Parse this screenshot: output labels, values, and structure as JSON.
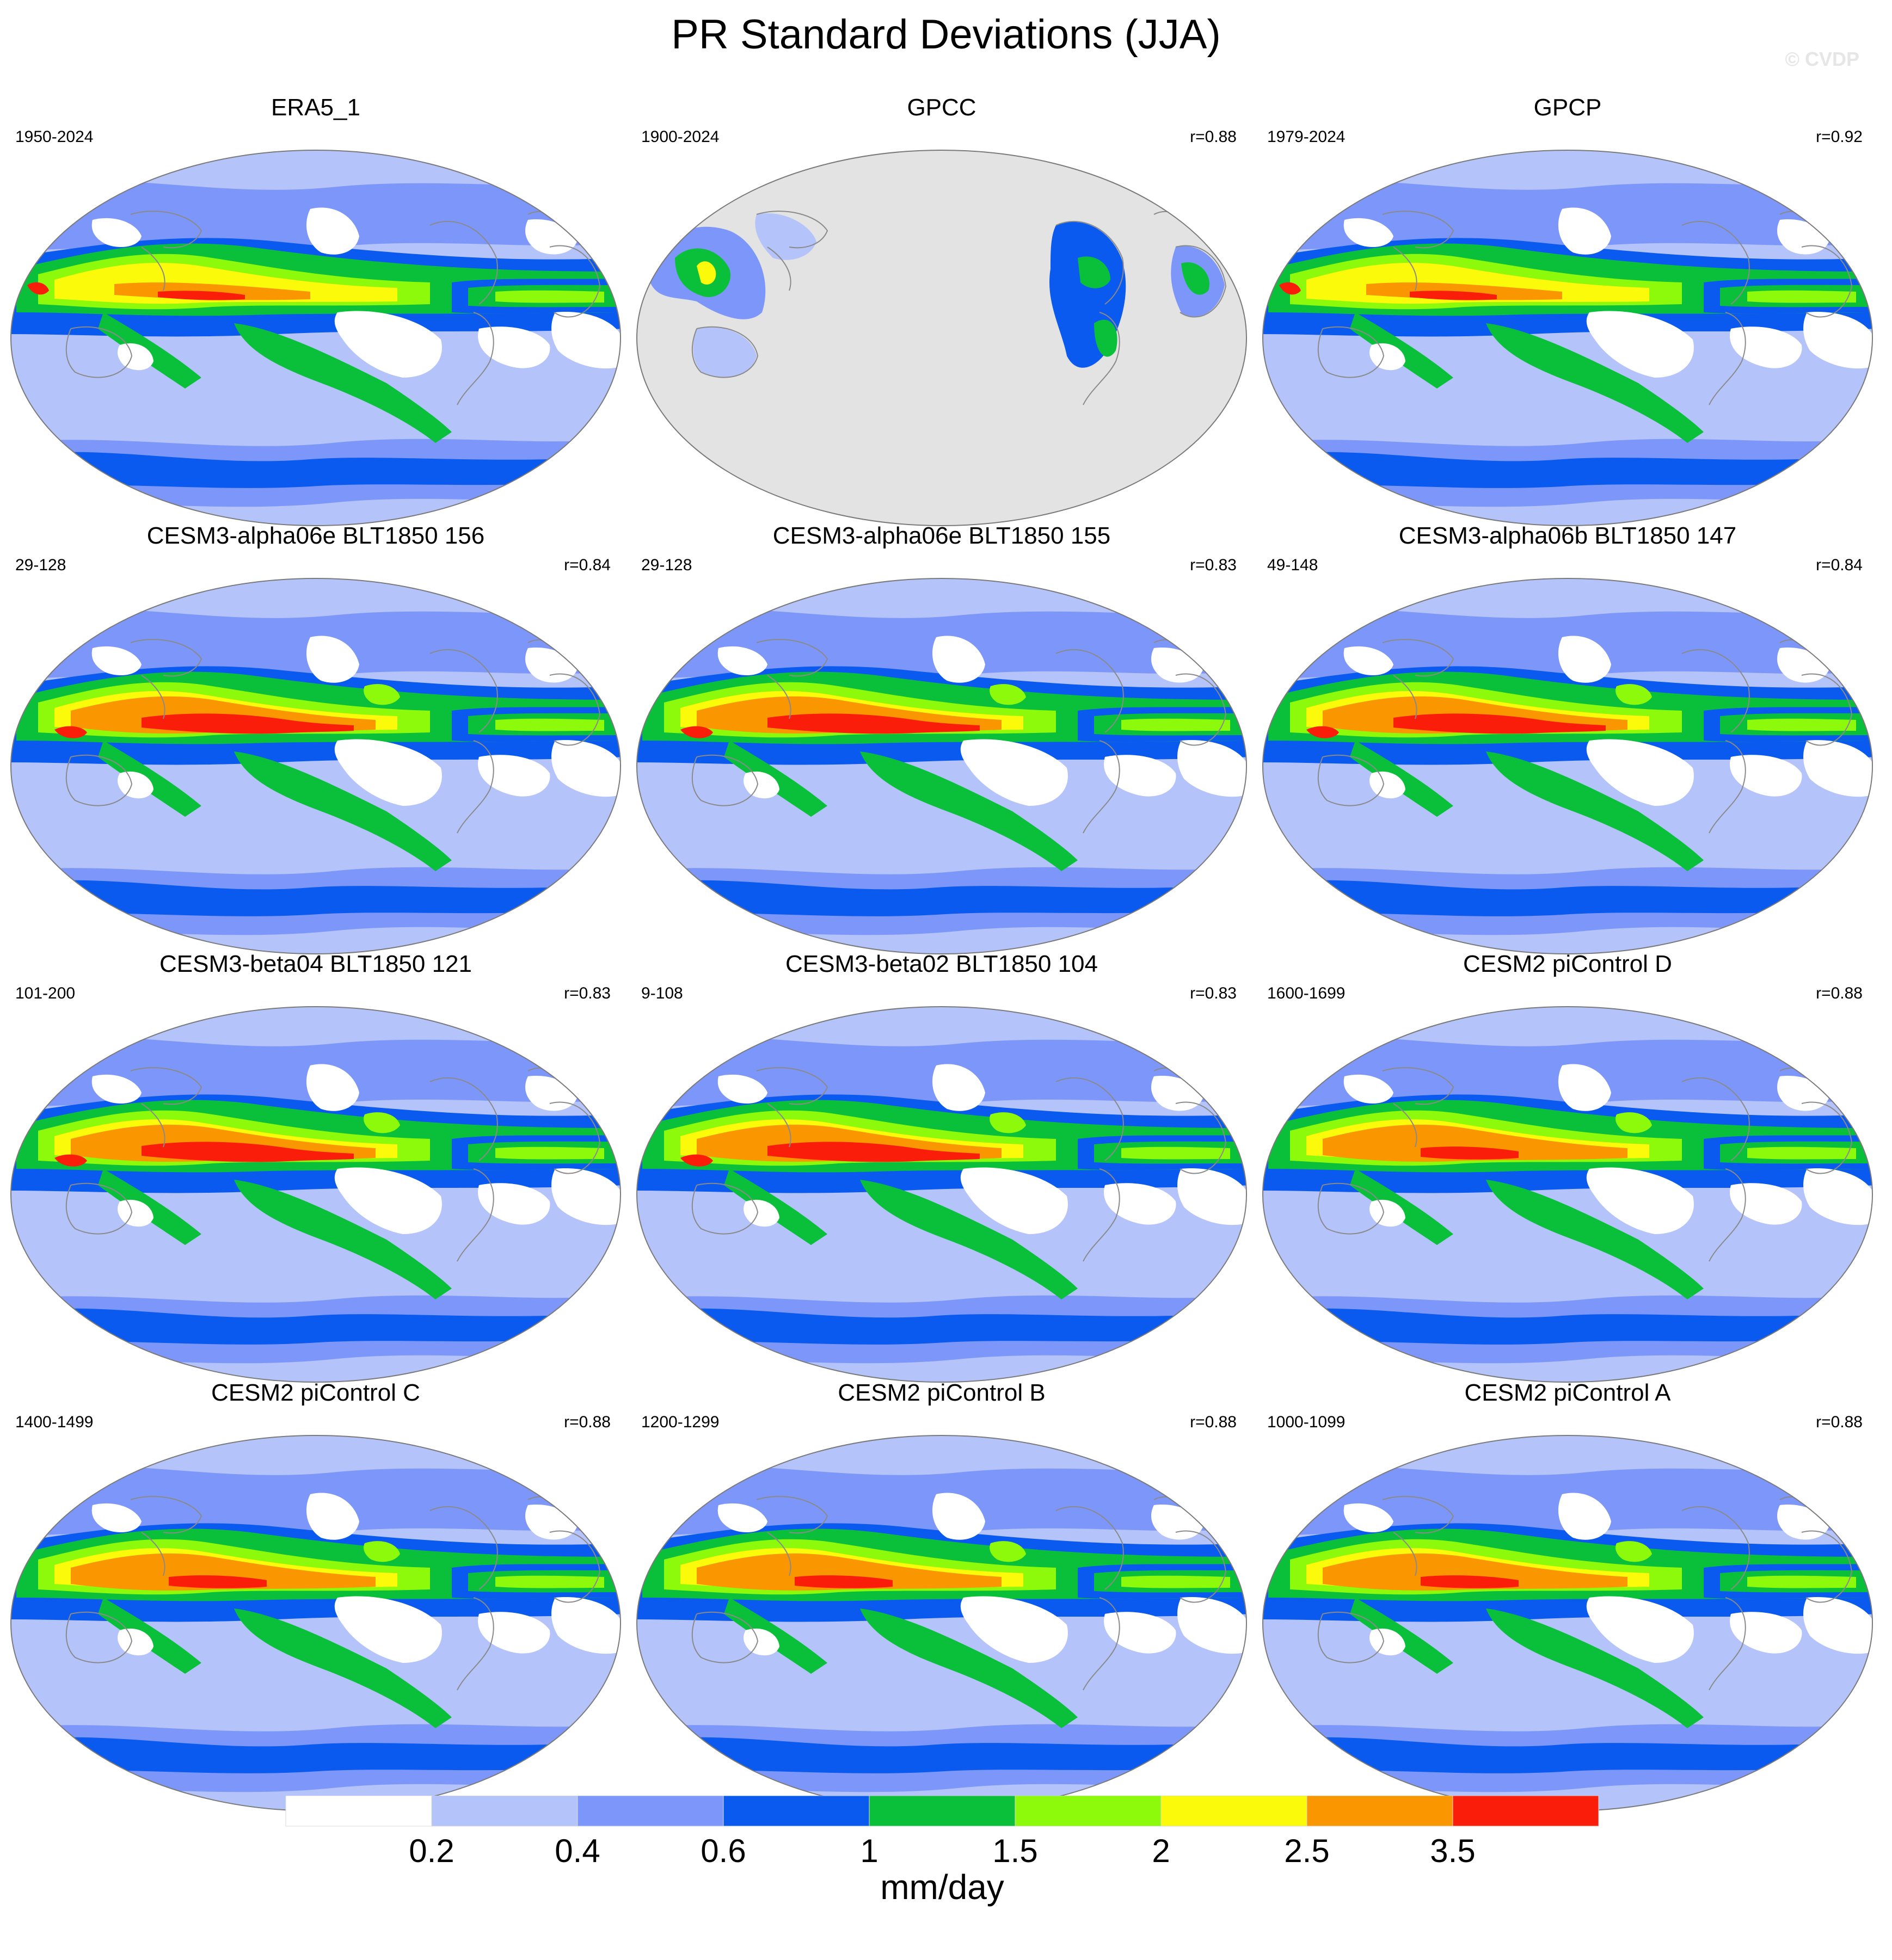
{
  "figure": {
    "title": "PR Standard Deviations (JJA)",
    "watermark": "© CVDP"
  },
  "panels": [
    {
      "title": "ERA5_1",
      "period": "1950-2024",
      "corr": "",
      "style": "obs"
    },
    {
      "title": "GPCC",
      "period": "1900-2024",
      "corr": "r=0.88",
      "style": "gpcc"
    },
    {
      "title": "GPCP",
      "period": "1979-2024",
      "corr": "r=0.92",
      "style": "obs"
    },
    {
      "title": "CESM3-alpha06e BLT1850 156",
      "period": "29-128",
      "corr": "r=0.84",
      "style": "strong"
    },
    {
      "title": "CESM3-alpha06e BLT1850 155",
      "period": "29-128",
      "corr": "r=0.83",
      "style": "strong"
    },
    {
      "title": "CESM3-alpha06b BLT1850 147",
      "period": "49-148",
      "corr": "r=0.84",
      "style": "strong"
    },
    {
      "title": "CESM3-beta04 BLT1850 121",
      "period": "101-200",
      "corr": "r=0.83",
      "style": "strong"
    },
    {
      "title": "CESM3-beta02 BLT1850 104",
      "period": "9-108",
      "corr": "r=0.83",
      "style": "strong"
    },
    {
      "title": "CESM2 piControl D",
      "period": "1600-1699",
      "corr": "r=0.88",
      "style": "cesm2"
    },
    {
      "title": "CESM2 piControl C",
      "period": "1400-1499",
      "corr": "r=0.88",
      "style": "cesm2"
    },
    {
      "title": "CESM2 piControl B",
      "period": "1200-1299",
      "corr": "r=0.88",
      "style": "cesm2"
    },
    {
      "title": "CESM2 piControl A",
      "period": "1000-1099",
      "corr": "r=0.88",
      "style": "cesm2"
    }
  ],
  "colorbar": {
    "label": "mm/day",
    "colors": [
      "#ffffff",
      "#b4c3fa",
      "#7d96fa",
      "#0a5af0",
      "#0ac03a",
      "#8cfa0a",
      "#fafa0a",
      "#fa9600",
      "#fa1e0a"
    ],
    "tick_labels": [
      "0.2",
      "0.4",
      "0.6",
      "1",
      "1.5",
      "2",
      "2.5",
      "3.5"
    ]
  },
  "map_colors": {
    "missing": "#e3e3e3",
    "coast": "#8a8a8a",
    "outline": "#7a7a7a"
  }
}
